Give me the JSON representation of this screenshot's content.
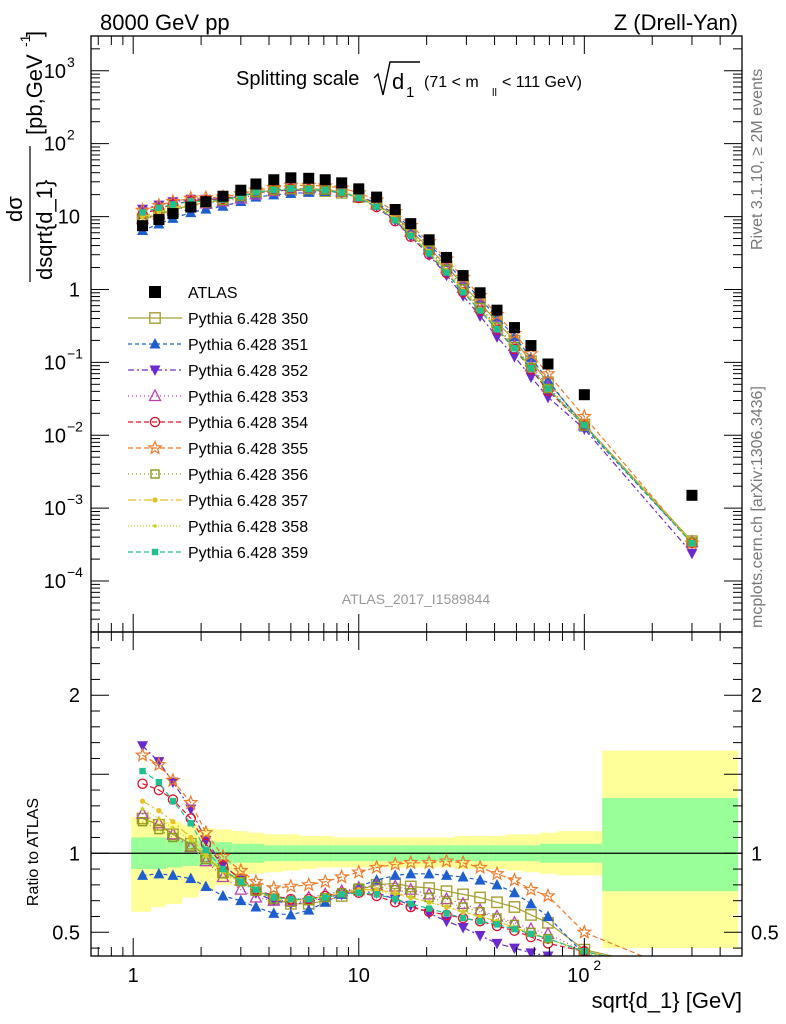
{
  "header": {
    "left": "8000 GeV pp",
    "right": "Z (Drell-Yan)"
  },
  "side_text": {
    "rivet": "Rivet 3.1.10, ≥ 2M events",
    "mcplots": "mcplots.cern.ch [arXiv:1306.3436]"
  },
  "colors": {
    "ATLAS": "#000000",
    "350": "#a5a030",
    "351": "#1e5fd0",
    "352": "#6a2ad0",
    "353": "#c040b0",
    "354": "#e0102a",
    "355": "#f07a28",
    "356": "#8a9a1a",
    "357": "#e8c020",
    "358": "#c8d020",
    "359": "#20c090",
    "band_yellow": "#ffff99",
    "band_green": "#99ff99"
  },
  "chart_data": [
    {
      "type": "scatter",
      "name": "main-distribution",
      "title": "Splitting scale",
      "title_symbol": "d",
      "title_sub": "1",
      "title_range": "(71 < m",
      "title_range_sub": "ll",
      "title_range_end": "< 111 GeV)",
      "ylabel_num": "dσ",
      "ylabel_den": "dsqrt{d_1}",
      "ylabel_units": "[pb,GeV",
      "ylabel_units_sup": "-1",
      "ylabel_units_end": "]",
      "xscale": "log",
      "yscale": "log",
      "xlim": [
        0.65,
        500
      ],
      "ylim": [
        2e-05,
        3000
      ],
      "y_ticks": [
        {
          "v": 0.0001,
          "b": "10",
          "e": "−4"
        },
        {
          "v": 0.001,
          "b": "10",
          "e": "−3"
        },
        {
          "v": 0.01,
          "b": "10",
          "e": "−2"
        },
        {
          "v": 0.1,
          "b": "10",
          "e": "−1"
        },
        {
          "v": 1,
          "b": "1",
          "e": ""
        },
        {
          "v": 10,
          "b": "10",
          "e": ""
        },
        {
          "v": 100,
          "b": "10",
          "e": "2"
        },
        {
          "v": 1000,
          "b": "10",
          "e": "3"
        }
      ],
      "watermark": "ATLAS_2017_I1589844",
      "x": [
        1.1,
        1.3,
        1.5,
        1.8,
        2.1,
        2.5,
        3.0,
        3.5,
        4.2,
        5.0,
        6.0,
        7.1,
        8.4,
        10.0,
        12.0,
        14.5,
        17.0,
        20.5,
        24.5,
        29.0,
        34.5,
        41.0,
        49.0,
        58.0,
        69.0,
        100.0,
        300.0
      ],
      "atlas": [
        7.5,
        9.1,
        11.0,
        13.5,
        16.0,
        19.0,
        23.0,
        28.0,
        32.0,
        34.0,
        33.5,
        32.0,
        29.0,
        24.0,
        18.5,
        12.5,
        8.0,
        4.8,
        2.75,
        1.55,
        0.9,
        0.52,
        0.3,
        0.17,
        0.095,
        0.036,
        0.0015
      ],
      "legend_title": "ATLAS",
      "series": [
        {
          "id": "350",
          "name": "Pythia 6.428 350",
          "marker": "square-open",
          "dash": "",
          "ratio": [
            1.22,
            1.18,
            1.12,
            1.06,
            0.98,
            0.88,
            0.83,
            0.77,
            0.71,
            0.68,
            0.68,
            0.7,
            0.73,
            0.77,
            0.8,
            0.81,
            0.79,
            0.78,
            0.76,
            0.74,
            0.72,
            0.69,
            0.66,
            0.61,
            0.56,
            0.39,
            0.235
          ]
        },
        {
          "id": "351",
          "name": "Pythia 6.428 351",
          "marker": "triangle-up",
          "dash": "4,3",
          "ratio": [
            0.86,
            0.87,
            0.86,
            0.84,
            0.79,
            0.73,
            0.7,
            0.66,
            0.62,
            0.61,
            0.64,
            0.69,
            0.74,
            0.79,
            0.83,
            0.86,
            0.87,
            0.87,
            0.86,
            0.85,
            0.83,
            0.8,
            0.75,
            0.68,
            0.6,
            0.36,
            0.22
          ]
        },
        {
          "id": "352",
          "name": "Pythia 6.428 352",
          "marker": "triangle-down",
          "dash": "6,3,2,3",
          "ratio": [
            1.68,
            1.58,
            1.45,
            1.28,
            1.08,
            0.93,
            0.83,
            0.75,
            0.7,
            0.68,
            0.69,
            0.72,
            0.74,
            0.76,
            0.75,
            0.71,
            0.67,
            0.62,
            0.57,
            0.53,
            0.48,
            0.43,
            0.4,
            0.37,
            0.35,
            0.34,
            0.16
          ]
        },
        {
          "id": "353",
          "name": "Pythia 6.428 353",
          "marker": "triangle-open",
          "dash": "1,3",
          "ratio": [
            1.25,
            1.19,
            1.12,
            1.04,
            0.95,
            0.85,
            0.77,
            0.72,
            0.7,
            0.7,
            0.72,
            0.74,
            0.76,
            0.78,
            0.8,
            0.79,
            0.77,
            0.74,
            0.71,
            0.68,
            0.64,
            0.6,
            0.56,
            0.52,
            0.49,
            0.38,
            0.23
          ]
        },
        {
          "id": "354",
          "name": "Pythia 6.428 354",
          "marker": "circle-open",
          "dash": "5,3",
          "ratio": [
            1.44,
            1.4,
            1.34,
            1.22,
            1.06,
            0.92,
            0.84,
            0.77,
            0.73,
            0.71,
            0.71,
            0.73,
            0.75,
            0.75,
            0.73,
            0.69,
            0.66,
            0.63,
            0.61,
            0.59,
            0.57,
            0.54,
            0.51,
            0.47,
            0.43,
            0.38,
            0.22
          ]
        },
        {
          "id": "355",
          "name": "Pythia 6.428 355",
          "marker": "star-open",
          "dash": "5,3",
          "ratio": [
            1.62,
            1.56,
            1.46,
            1.32,
            1.13,
            0.98,
            0.89,
            0.82,
            0.78,
            0.79,
            0.8,
            0.82,
            0.85,
            0.88,
            0.91,
            0.93,
            0.94,
            0.94,
            0.95,
            0.94,
            0.91,
            0.87,
            0.83,
            0.77,
            0.73,
            0.5,
            0.22
          ]
        },
        {
          "id": "356",
          "name": "Pythia 6.428 356",
          "marker": "square-open-small",
          "dash": "1,3",
          "ratio": [
            1.2,
            1.15,
            1.1,
            1.04,
            0.96,
            0.87,
            0.82,
            0.76,
            0.71,
            0.69,
            0.7,
            0.72,
            0.75,
            0.78,
            0.79,
            0.77,
            0.75,
            0.72,
            0.69,
            0.66,
            0.63,
            0.59,
            0.55,
            0.5,
            0.46,
            0.37,
            0.23
          ]
        },
        {
          "id": "357",
          "name": "Pythia 6.428 357",
          "marker": "dot",
          "dash": "8,3,2,3",
          "ratio": [
            1.33,
            1.27,
            1.2,
            1.1,
            0.99,
            0.89,
            0.83,
            0.77,
            0.72,
            0.7,
            0.71,
            0.73,
            0.75,
            0.77,
            0.77,
            0.75,
            0.72,
            0.69,
            0.66,
            0.63,
            0.6,
            0.57,
            0.53,
            0.49,
            0.46,
            0.38,
            0.23
          ]
        },
        {
          "id": "358",
          "name": "Pythia 6.428 358",
          "marker": "dot-small",
          "dash": "1,2",
          "ratio": [
            1.28,
            1.22,
            1.16,
            1.08,
            0.98,
            0.88,
            0.82,
            0.76,
            0.71,
            0.7,
            0.71,
            0.72,
            0.74,
            0.76,
            0.76,
            0.74,
            0.72,
            0.69,
            0.66,
            0.63,
            0.6,
            0.57,
            0.53,
            0.5,
            0.46,
            0.38,
            0.23
          ]
        },
        {
          "id": "359",
          "name": "Pythia 6.428 359",
          "marker": "square-filled",
          "dash": "5,3",
          "ratio": [
            1.52,
            1.45,
            1.33,
            1.19,
            1.02,
            0.9,
            0.82,
            0.77,
            0.72,
            0.71,
            0.71,
            0.72,
            0.74,
            0.75,
            0.74,
            0.71,
            0.68,
            0.65,
            0.62,
            0.59,
            0.57,
            0.55,
            0.52,
            0.49,
            0.46,
            0.38,
            0.22
          ]
        }
      ]
    },
    {
      "type": "line",
      "name": "ratio-panel",
      "ylabel": "Ratio to ATLAS",
      "xlabel": "sqrt{d_1} [GeV]",
      "xscale": "log",
      "xlim": [
        0.65,
        500
      ],
      "ylim": [
        0.35,
        2.4
      ],
      "ref_line": 1,
      "y_ticks": [
        "0.5",
        "1",
        "2"
      ],
      "x_ticks": [
        {
          "v": 1,
          "b": "1",
          "e": ""
        },
        {
          "v": 10,
          "b": "10",
          "e": ""
        },
        {
          "v": 100,
          "b": "10",
          "e": "2"
        }
      ],
      "bands": {
        "edges": [
          0.98,
          1.2,
          1.4,
          1.65,
          1.95,
          2.3,
          2.75,
          3.25,
          3.8,
          4.6,
          5.5,
          6.5,
          7.7,
          9.2,
          11,
          13,
          15.5,
          18.5,
          22.5,
          26.5,
          31.5,
          37.5,
          45,
          53.5,
          63.5,
          76,
          120,
          480
        ],
        "yellow_lo": [
          0.63,
          0.66,
          0.68,
          0.72,
          0.76,
          0.8,
          0.84,
          0.87,
          0.88,
          0.89,
          0.9,
          0.91,
          0.91,
          0.91,
          0.91,
          0.91,
          0.91,
          0.91,
          0.91,
          0.9,
          0.9,
          0.9,
          0.89,
          0.88,
          0.87,
          0.86,
          0.4
        ],
        "yellow_hi": [
          1.23,
          1.22,
          1.2,
          1.18,
          1.16,
          1.15,
          1.14,
          1.13,
          1.12,
          1.12,
          1.11,
          1.11,
          1.1,
          1.1,
          1.1,
          1.1,
          1.1,
          1.1,
          1.1,
          1.11,
          1.11,
          1.11,
          1.12,
          1.12,
          1.13,
          1.14,
          1.65
        ],
        "green_lo": [
          0.9,
          0.9,
          0.91,
          0.92,
          0.92,
          0.93,
          0.94,
          0.94,
          0.95,
          0.95,
          0.95,
          0.95,
          0.95,
          0.95,
          0.95,
          0.95,
          0.95,
          0.95,
          0.95,
          0.95,
          0.95,
          0.95,
          0.95,
          0.95,
          0.94,
          0.94,
          0.76
        ],
        "green_hi": [
          1.1,
          1.1,
          1.09,
          1.08,
          1.08,
          1.07,
          1.06,
          1.06,
          1.05,
          1.05,
          1.05,
          1.05,
          1.05,
          1.05,
          1.05,
          1.05,
          1.05,
          1.05,
          1.05,
          1.05,
          1.05,
          1.05,
          1.05,
          1.05,
          1.06,
          1.06,
          1.35
        ]
      }
    }
  ]
}
